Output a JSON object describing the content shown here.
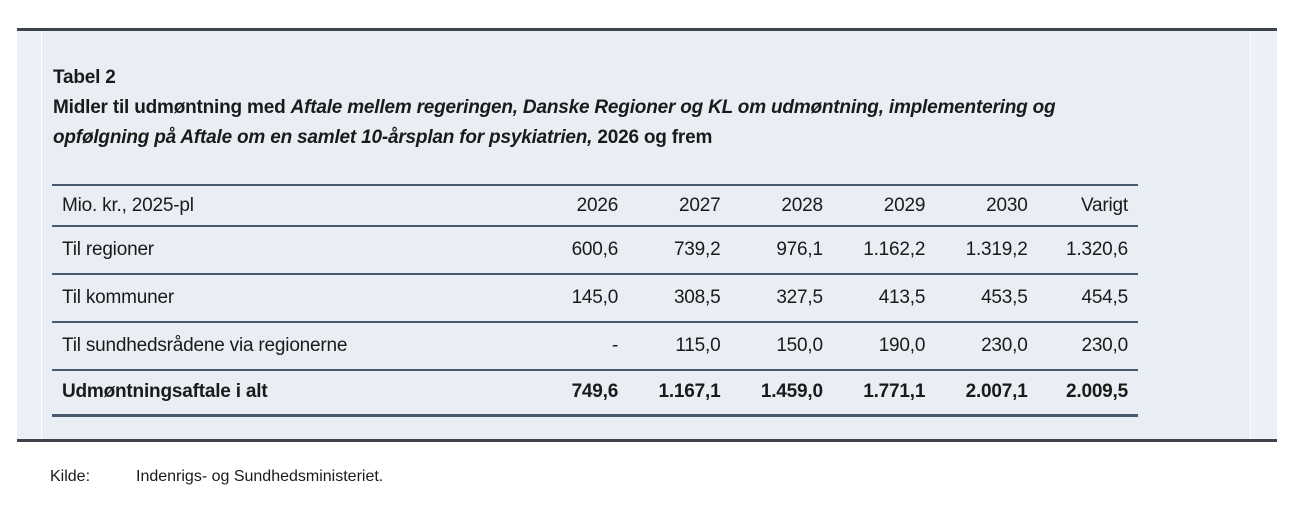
{
  "caption": {
    "label": "Tabel 2",
    "title_plain_start": "Midler til udmøntning med ",
    "title_italic_line1": "Aftale mellem regeringen, Danske Regioner og KL om udmøntning, implementering og",
    "title_italic_line2": "opfølgning på Aftale om en samlet 10-årsplan for psykiatrien,",
    "title_plain_end": " 2026 og frem"
  },
  "table": {
    "header": [
      "Mio. kr., 2025-pl",
      "2026",
      "2027",
      "2028",
      "2029",
      "2030",
      "Varigt"
    ],
    "rows": [
      {
        "label": "Til regioner",
        "values": [
          "600,6",
          "739,2",
          "976,1",
          "1.162,2",
          "1.319,2",
          "1.320,6"
        ]
      },
      {
        "label": "Til kommuner",
        "values": [
          "145,0",
          "308,5",
          "327,5",
          "413,5",
          "453,5",
          "454,5"
        ]
      },
      {
        "label": "Til sundhedsrådene via regionerne",
        "values": [
          "-",
          "115,0",
          "150,0",
          "190,0",
          "230,0",
          "230,0"
        ]
      },
      {
        "label": "Udmøntningsaftale i alt",
        "values": [
          "749,6",
          "1.167,1",
          "1.459,0",
          "1.771,1",
          "2.007,1",
          "2.009,5"
        ]
      }
    ]
  },
  "source": {
    "label": "Kilde:",
    "text": "Indenrigs- og Sundhedsministeriet."
  },
  "colors": {
    "panel_background": "#e9edf4",
    "table_rule": "#4a5a6e",
    "outer_border": "#3f444a",
    "text": "#1a1a1a"
  }
}
